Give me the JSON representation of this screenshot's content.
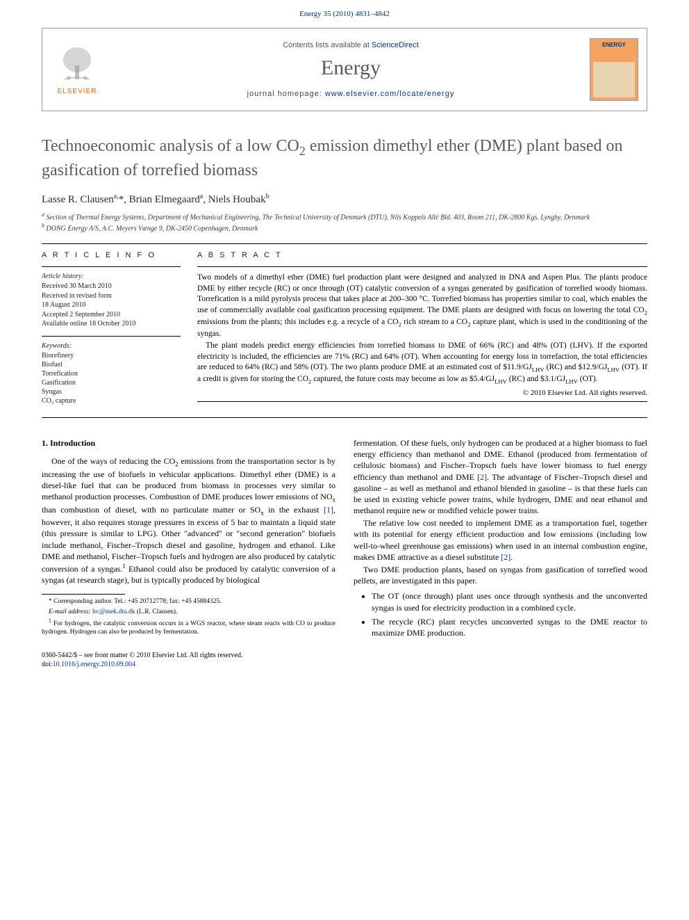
{
  "header": {
    "citation": "Energy 35 (2010) 4831–4842"
  },
  "journal_box": {
    "publisher_name": "ELSEVIER",
    "contents_prefix": "Contents lists available at ",
    "contents_link": "ScienceDirect",
    "journal_name": "Energy",
    "homepage_prefix": "journal homepage: ",
    "homepage_url": "www.elsevier.com/locate/energy",
    "cover_label": "ENERGY"
  },
  "title_html": "Technoeconomic analysis of a low CO<sub>2</sub> emission dimethyl ether (DME) plant based on gasification of torrefied biomass",
  "authors_html": "Lasse R. Clausen<sup>a,</sup>*, Brian Elmegaard<sup>a</sup>, Niels Houbak<sup>b</sup>",
  "affiliations": [
    {
      "sup": "a",
      "text": "Section of Thermal Energy Systems, Department of Mechanical Engineering, The Technical University of Denmark (DTU), Nils Koppels Allé Bld. 403, Room 211, DK-2800 Kgs. Lyngby, Denmark"
    },
    {
      "sup": "b",
      "text": "DONG Energy A/S, A.C. Meyers Vænge 9, DK-2450 Copenhagen, Denmark"
    }
  ],
  "info": {
    "heading": "A R T I C L E   I N F O",
    "history_label": "Article history:",
    "history": [
      "Received 30 March 2010",
      "Received in revised form",
      "18 August 2010",
      "Accepted 2 September 2010",
      "Available online 18 October 2010"
    ],
    "keywords_label": "Keywords:",
    "keywords": [
      "Biorefinery",
      "Biofuel",
      "Torrefication",
      "Gasification",
      "Syngas",
      "CO₂ capture"
    ]
  },
  "abstract": {
    "heading": "A B S T R A C T",
    "p1_html": "Two models of a dimethyl ether (DME) fuel production plant were designed and analyzed in DNA and Aspen Plus. The plants produce DME by either recycle (RC) or once through (OT) catalytic conversion of a syngas generated by gasification of torrefied woody biomass. Torrefication is a mild pyrolysis process that takes place at 200–300 °C. Torrefied biomass has properties similar to coal, which enables the use of commercially available coal gasification processing equipment. The DME plants are designed with focus on lowering the total CO<sub>2</sub> emissions from the plants; this includes e.g. a recycle of a CO<sub>2</sub> rich stream to a CO<sub>2</sub> capture plant, which is used in the conditioning of the syngas.",
    "p2_html": "The plant models predict energy efficiencies from torrefied biomass to DME of 66% (RC) and 48% (OT) (LHV). If the exported electricity is included, the efficiencies are 71% (RC) and 64% (OT). When accounting for energy loss in torrefaction, the total efficiencies are reduced to 64% (RC) and 58% (OT). The two plants produce DME at an estimated cost of $11.9/GJ<sub>LHV</sub> (RC) and $12.9/GJ<sub>LHV</sub> (OT). If a credit is given for storing the CO<sub>2</sub> captured, the future costs may become as low as $5.4/GJ<sub>LHV</sub> (RC) and $3.1/GJ<sub>LHV</sub> (OT).",
    "copyright": "© 2010 Elsevier Ltd. All rights reserved."
  },
  "body": {
    "section_heading": "1. Introduction",
    "col1_p1_html": "One of the ways of reducing the CO<sub>2</sub> emissions from the transportation sector is by increasing the use of biofuels in vehicular applications. Dimethyl ether (DME) is a diesel-like fuel that can be produced from biomass in processes very similar to methanol production processes. Combustion of DME produces lower emissions of NO<sub>x</sub> than combustion of diesel, with no particulate matter or SO<sub>x</sub> in the exhaust <a class=\"ref\" href=\"#\">[1]</a>, however, it also requires storage pressures in excess of 5 bar to maintain a liquid state (this pressure is similar to LPG). Other \"advanced\" or \"second generation\" biofuels include methanol, Fischer–Tropsch diesel and gasoline, hydrogen and ethanol. Like DME and methanol, Fischer–Tropsch fuels and hydrogen are also produced by catalytic conversion of a syngas.<sup class=\"fn\">1</sup> Ethanol could also be produced by catalytic conversion of a syngas (at research stage), but is typically produced by biological",
    "col2_p1_html": "fermentation. Of these fuels, only hydrogen can be produced at a higher biomass to fuel energy efficiency than methanol and DME. Ethanol (produced from fermentation of cellulosic biomass) and Fischer–Tropsch fuels have lower biomass to fuel energy efficiency than methanol and DME <a class=\"ref\" href=\"#\">[2]</a>. The advantage of Fischer–Tropsch diesel and gasoline – as well as methanol and ethanol blended in gasoline – is that these fuels can be used in existing vehicle power trains, while hydrogen, DME and neat ethanol and methanol require new or modified vehicle power trains.",
    "col2_p2_html": "The relative low cost needed to implement DME as a transportation fuel, together with its potential for energy efficient production and low emissions (including low well-to-wheel greenhouse gas emissions) when used in an internal combustion engine, makes DME attractive as a diesel substitute <a class=\"ref\" href=\"#\">[2]</a>.",
    "col2_p3_html": "Two DME production plants, based on syngas from gasification of torrefied wood pellets, are investigated in this paper.",
    "bullets": [
      "The OT (once through) plant uses once through synthesis and the unconverted syngas is used for electricity production in a combined cycle.",
      "The recycle (RC) plant recycles unconverted syngas to the DME reactor to maximize DME production."
    ]
  },
  "footnotes": {
    "corr_html": "* Corresponding author. Tel.: +45 20712778; fax: +45 45884325.",
    "email_label": "E-mail address: ",
    "email": "lrc@mek.dtu.dk",
    "email_suffix": " (L.R. Clausen).",
    "fn1_html": "<sup>1</sup> For hydrogen, the catalytic conversion occurs in a WGS reactor, where steam reacts with CO to produce hydrogen. Hydrogen can also be produced by fermentation."
  },
  "bottom": {
    "line1": "0360-5442/$ – see front matter © 2010 Elsevier Ltd. All rights reserved.",
    "doi_prefix": "doi:",
    "doi": "10.1016/j.energy.2010.09.004"
  },
  "colors": {
    "link": "#003399",
    "heading_gray": "#5a5a5a",
    "elsevier_orange": "#ff6600",
    "cover_bg": "#f4a460"
  }
}
